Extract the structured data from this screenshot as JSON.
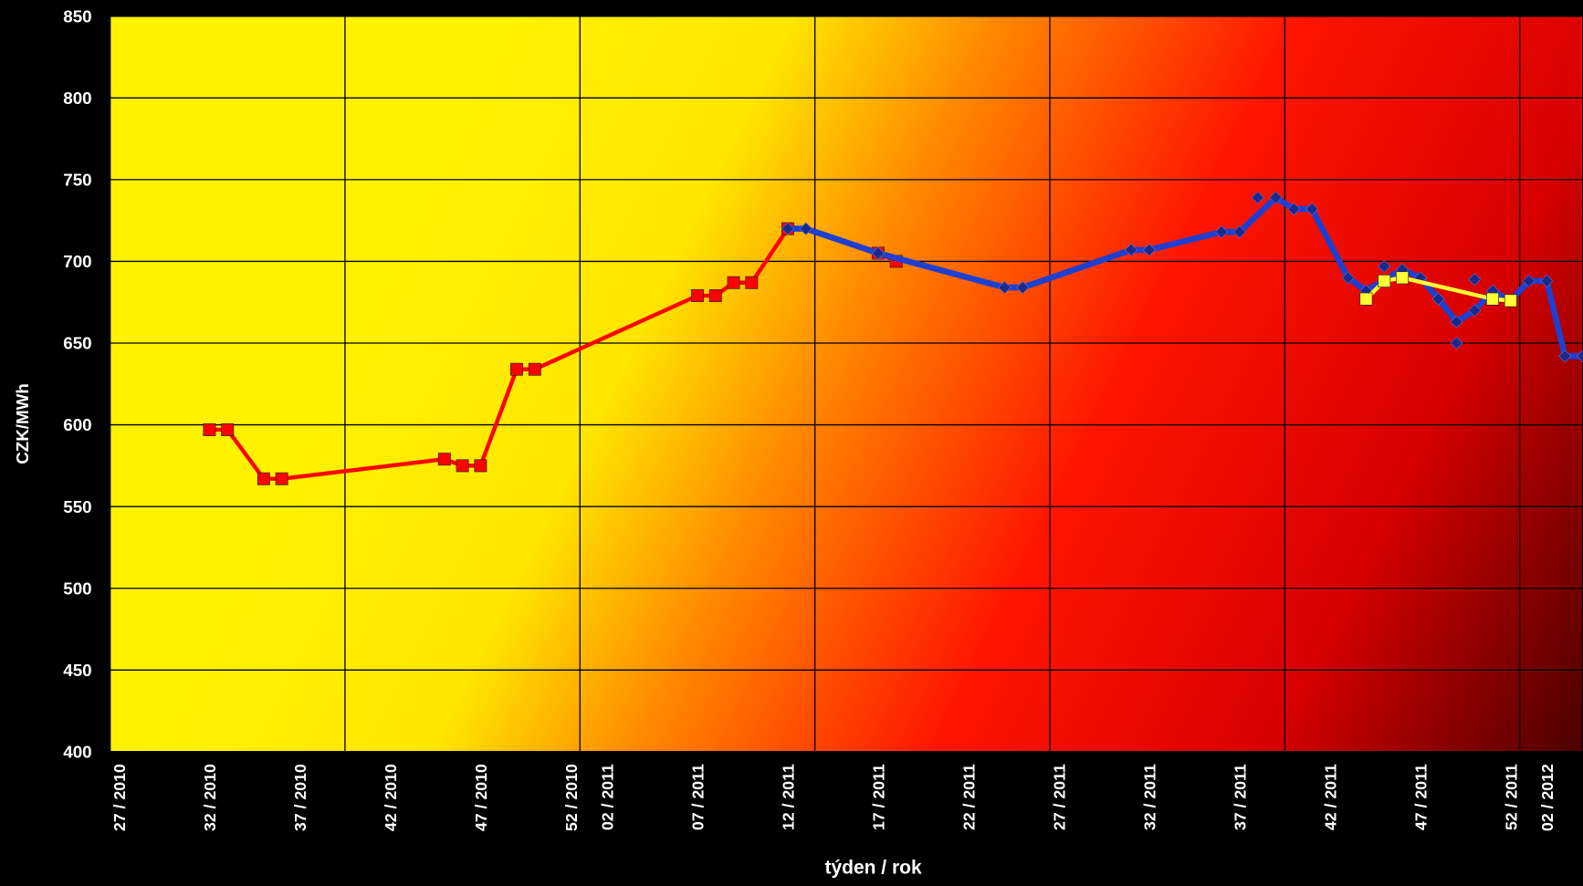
{
  "chart_data": {
    "type": "line",
    "y_label": "CZK/MWh",
    "x_label": "týden / rok",
    "xlim": [
      -0.5,
      81
    ],
    "xticks": [
      {
        "value": 0,
        "label": "27 / 2010"
      },
      {
        "value": 5,
        "label": "32 / 2010"
      },
      {
        "value": 10,
        "label": "37 / 2010"
      },
      {
        "value": 15,
        "label": "42 / 2010"
      },
      {
        "value": 20,
        "label": "47 / 2010"
      },
      {
        "value": 25,
        "label": "52 / 2010"
      },
      {
        "value": 27,
        "label": "02 / 2011"
      },
      {
        "value": 32,
        "label": "07 / 2011"
      },
      {
        "value": 37,
        "label": "12 / 2011"
      },
      {
        "value": 42,
        "label": "17 / 2011"
      },
      {
        "value": 47,
        "label": "22 / 2011"
      },
      {
        "value": 52,
        "label": "27 / 2011"
      },
      {
        "value": 57,
        "label": "32 / 2011"
      },
      {
        "value": 62,
        "label": "37 / 2011"
      },
      {
        "value": 67,
        "label": "42 / 2011"
      },
      {
        "value": 72,
        "label": "47 / 2011"
      },
      {
        "value": 77,
        "label": "52 / 2011"
      },
      {
        "value": 79,
        "label": "02 / 2012"
      }
    ],
    "x_gridlines": [
      12.5,
      25.5,
      38.5,
      51.5,
      64.5,
      77.5
    ],
    "ylim": [
      400,
      850
    ],
    "yticks": [
      400,
      450,
      500,
      550,
      600,
      650,
      700,
      750,
      800,
      850
    ],
    "grid": true,
    "series": [
      {
        "color": "#ff0000",
        "marker": "square",
        "width": 4,
        "x": [
          5,
          6,
          8,
          9,
          18,
          19,
          20,
          22,
          23,
          32,
          33,
          34,
          35,
          37,
          40,
          42,
          43
        ],
        "values": [
          597,
          597,
          567,
          567,
          579,
          575,
          575,
          634,
          634,
          679,
          679,
          687,
          687,
          720,
          null,
          705,
          700
        ]
      },
      {
        "color": "#1f3fd0",
        "marker": "diamond",
        "width": 6,
        "x": [
          37,
          38,
          42,
          49,
          50,
          56,
          57,
          61,
          62,
          64,
          65,
          66,
          68,
          69,
          71,
          72,
          73,
          74,
          75,
          76,
          77,
          78,
          79,
          80,
          81
        ],
        "values": [
          720,
          720,
          705,
          684,
          684,
          707,
          707,
          718,
          718,
          739,
          732,
          732,
          690,
          682,
          695,
          690,
          677,
          663,
          670,
          682,
          676,
          688,
          688,
          642,
          642
        ]
      },
      {
        "color": "#1f3fd0",
        "marker": "diamond",
        "width": 0,
        "x": [
          63,
          70,
          73,
          74,
          75
        ],
        "values": [
          739,
          697,
          677,
          650,
          689
        ]
      },
      {
        "color": "#ffff33",
        "marker": "square",
        "width": 4,
        "x": [
          69,
          70,
          71,
          76,
          77
        ],
        "values": [
          677,
          688,
          690,
          677,
          676
        ]
      }
    ]
  }
}
